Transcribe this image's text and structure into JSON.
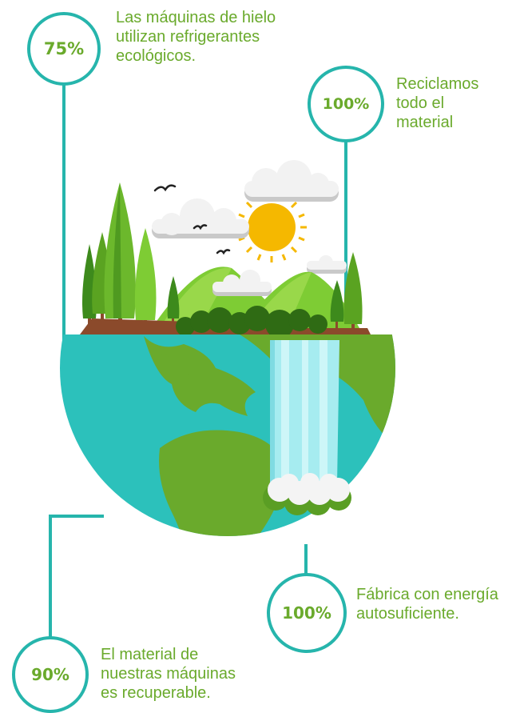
{
  "colors": {
    "accent_teal": "#26b5ac",
    "text_green": "#6aaa2c",
    "ocean": "#2cc1bb",
    "land": "#6aaa2c",
    "waterfall": "#a6ecf0",
    "sun": "#f5b800"
  },
  "stats": [
    {
      "percent": "75%",
      "caption_lines": [
        "Las máquinas de hielo",
        "utilizan refrigerantes",
        "ecológicos."
      ]
    },
    {
      "percent": "100%",
      "caption_lines": [
        "Reciclamos",
        "todo el",
        "material"
      ]
    },
    {
      "percent": "100%",
      "caption_lines": [
        "Fábrica con energía",
        "autosuficiente."
      ]
    },
    {
      "percent": "90%",
      "caption_lines": [
        "El material de",
        "nuestras máquinas",
        "es recuperable."
      ]
    }
  ],
  "illustration": {
    "icons": [
      "globe-icon",
      "waterfall-icon",
      "tree-icon",
      "mountain-icon",
      "sun-icon",
      "cloud-icon",
      "bird-icon"
    ]
  }
}
